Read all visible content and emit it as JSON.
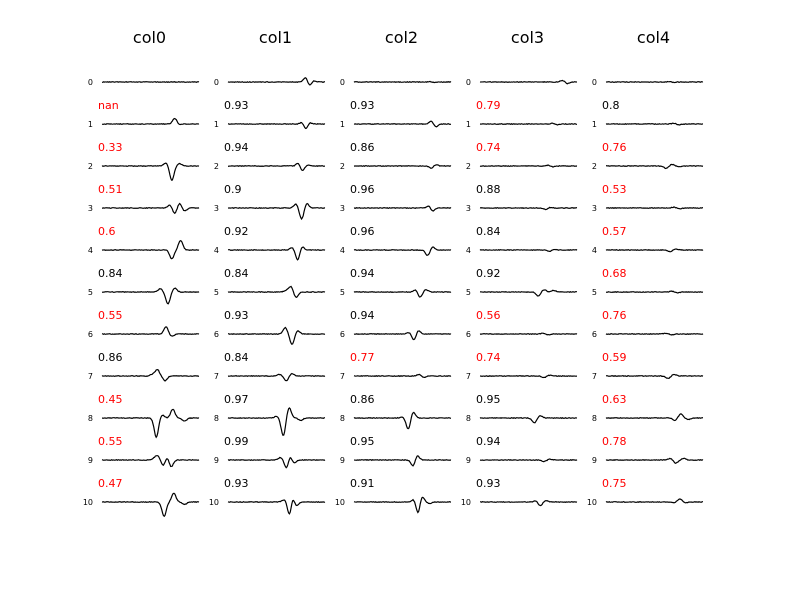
{
  "chart_data": {
    "type": "line",
    "columns": [
      "col0",
      "col1",
      "col2",
      "col3",
      "col4"
    ],
    "row_labels": [
      "0",
      "1",
      "2",
      "3",
      "4",
      "5",
      "6",
      "7",
      "8",
      "9",
      "10"
    ],
    "score_threshold": 0.8,
    "colors": {
      "low_score": "#ff0000",
      "normal_score": "#000000",
      "trace": "#000000"
    },
    "scores": [
      [
        "nan",
        "0.33",
        "0.51",
        "0.6",
        "0.84",
        "0.55",
        "0.86",
        "0.45",
        "0.55",
        "0.47"
      ],
      [
        "0.93",
        "0.94",
        "0.9",
        "0.92",
        "0.84",
        "0.93",
        "0.84",
        "0.97",
        "0.99",
        "0.93"
      ],
      [
        "0.93",
        "0.86",
        "0.96",
        "0.96",
        "0.94",
        "0.94",
        "0.77",
        "0.86",
        "0.95",
        "0.91"
      ],
      [
        "0.79",
        "0.74",
        "0.88",
        "0.84",
        "0.92",
        "0.56",
        "0.74",
        "0.95",
        "0.94",
        "0.93"
      ],
      [
        "0.8",
        "0.76",
        "0.53",
        "0.57",
        "0.68",
        "0.76",
        "0.59",
        "0.63",
        "0.78",
        "0.75"
      ]
    ],
    "waveforms": [
      [
        [],
        [
          [
            0.75,
            0.7
          ],
          [
            0.8,
            -0.1
          ]
        ],
        [
          [
            0.72,
            -1.8
          ],
          [
            0.66,
            0.4
          ],
          [
            0.8,
            0.3
          ]
        ],
        [
          [
            0.7,
            0.4
          ],
          [
            0.75,
            -0.7
          ],
          [
            0.8,
            0.6
          ],
          [
            0.85,
            -0.4
          ]
        ],
        [
          [
            0.72,
            -1.1
          ],
          [
            0.81,
            1.2
          ]
        ],
        [
          [
            0.68,
            -1.5
          ],
          [
            0.6,
            0.4
          ],
          [
            0.75,
            0.5
          ]
        ],
        [
          [
            0.66,
            0.9
          ],
          [
            0.72,
            -0.3
          ]
        ],
        [
          [
            0.57,
            0.8
          ],
          [
            0.65,
            -0.6
          ],
          [
            0.52,
            0.2
          ]
        ],
        [
          [
            0.56,
            -2.4
          ],
          [
            0.73,
            1.1
          ],
          [
            0.62,
            0.4
          ],
          [
            0.85,
            -0.4
          ]
        ],
        [
          [
            0.58,
            0.4
          ],
          [
            0.63,
            -0.7
          ],
          [
            0.68,
            0.5
          ],
          [
            0.71,
            -1.0
          ],
          [
            0.55,
            0.3
          ]
        ],
        [
          [
            0.64,
            -1.8
          ],
          [
            0.74,
            1.1
          ],
          [
            0.85,
            -0.3
          ]
        ]
      ],
      [
        [
          [
            0.8,
            0.6
          ],
          [
            0.84,
            -0.5
          ],
          [
            0.88,
            0.2
          ]
        ],
        [
          [
            0.8,
            -0.7
          ],
          [
            0.77,
            0.3
          ],
          [
            0.84,
            0.2
          ]
        ],
        [
          [
            0.76,
            -0.7
          ],
          [
            0.73,
            0.5
          ],
          [
            0.83,
            0.1
          ]
        ],
        [
          [
            0.76,
            -1.4
          ],
          [
            0.7,
            0.5
          ],
          [
            0.81,
            0.6
          ]
        ],
        [
          [
            0.72,
            -1.3
          ],
          [
            0.76,
            0.5
          ],
          [
            0.66,
            0.3
          ]
        ],
        [
          [
            0.65,
            0.7
          ],
          [
            0.7,
            -0.7
          ],
          [
            0.6,
            0.2
          ]
        ],
        [
          [
            0.59,
            0.8
          ],
          [
            0.66,
            -1.3
          ],
          [
            0.72,
            0.4
          ]
        ],
        [
          [
            0.6,
            -0.6
          ],
          [
            0.53,
            0.2
          ],
          [
            0.66,
            0.3
          ]
        ],
        [
          [
            0.57,
            -2.2
          ],
          [
            0.63,
            1.3
          ],
          [
            0.5,
            0.2
          ],
          [
            0.75,
            -0.3
          ]
        ],
        [
          [
            0.61,
            -1.5
          ],
          [
            0.63,
            1.0
          ],
          [
            0.54,
            0.3
          ],
          [
            0.68,
            -0.4
          ]
        ],
        [
          [
            0.64,
            -2.3
          ],
          [
            0.66,
            1.5
          ],
          [
            0.58,
            0.3
          ],
          [
            0.7,
            -0.6
          ]
        ]
      ],
      [
        [
          [
            0.8,
            0.1
          ],
          [
            0.82,
            -0.1
          ]
        ],
        [
          [
            0.8,
            0.4
          ],
          [
            0.84,
            -0.4
          ]
        ],
        [
          [
            0.8,
            -0.3
          ],
          [
            0.84,
            0.2
          ]
        ],
        [
          [
            0.77,
            0.3
          ],
          [
            0.81,
            -0.4
          ]
        ],
        [
          [
            0.76,
            -0.7
          ],
          [
            0.81,
            0.4
          ]
        ],
        [
          [
            0.68,
            -0.7
          ],
          [
            0.64,
            0.3
          ],
          [
            0.74,
            0.3
          ]
        ],
        [
          [
            0.62,
            -0.8
          ],
          [
            0.66,
            0.5
          ],
          [
            0.57,
            0.2
          ]
        ],
        [
          [
            0.67,
            0.2
          ],
          [
            0.72,
            -0.2
          ]
        ],
        [
          [
            0.56,
            -1.4
          ],
          [
            0.61,
            0.8
          ],
          [
            0.5,
            0.1
          ]
        ],
        [
          [
            0.61,
            -0.8
          ],
          [
            0.65,
            0.6
          ]
        ],
        [
          [
            0.66,
            -1.5
          ],
          [
            0.7,
            0.8
          ],
          [
            0.62,
            0.4
          ],
          [
            0.78,
            -0.2
          ]
        ]
      ],
      [
        [
          [
            0.85,
            0.2
          ],
          [
            0.9,
            -0.2
          ]
        ],
        [
          [
            0.75,
            0.1
          ],
          [
            0.8,
            -0.1
          ]
        ],
        [
          [
            0.7,
            0.1
          ],
          [
            0.75,
            -0.1
          ]
        ],
        [
          [
            0.68,
            -0.2
          ],
          [
            0.72,
            0.1
          ]
        ],
        [
          [
            0.72,
            -0.2
          ],
          [
            0.76,
            0.1
          ]
        ],
        [
          [
            0.6,
            -0.5
          ],
          [
            0.66,
            0.3
          ],
          [
            0.76,
            0.2
          ]
        ],
        [
          [
            0.65,
            0.1
          ],
          [
            0.7,
            -0.1
          ]
        ],
        [
          [
            0.66,
            -0.2
          ],
          [
            0.72,
            0.1
          ]
        ],
        [
          [
            0.56,
            -0.6
          ],
          [
            0.62,
            0.3
          ]
        ],
        [
          [
            0.66,
            -0.2
          ],
          [
            0.72,
            0.1
          ]
        ],
        [
          [
            0.62,
            -0.5
          ],
          [
            0.58,
            0.2
          ],
          [
            0.68,
            0.2
          ]
        ]
      ],
      [
        [
          [
            0.65,
            0.05
          ],
          [
            0.7,
            -0.05
          ]
        ],
        [
          [
            0.7,
            0.1
          ],
          [
            0.75,
            -0.1
          ]
        ],
        [
          [
            0.62,
            -0.3
          ],
          [
            0.68,
            0.2
          ],
          [
            0.76,
            -0.1
          ]
        ],
        [
          [
            0.7,
            0.1
          ],
          [
            0.76,
            -0.1
          ]
        ],
        [
          [
            0.66,
            -0.2
          ],
          [
            0.72,
            0.1
          ]
        ],
        [
          [
            0.68,
            0.1
          ],
          [
            0.74,
            -0.1
          ]
        ],
        [
          [
            0.62,
            0.1
          ],
          [
            0.68,
            -0.1
          ]
        ],
        [
          [
            0.64,
            -0.3
          ],
          [
            0.7,
            0.2
          ]
        ],
        [
          [
            0.77,
            0.5
          ],
          [
            0.71,
            -0.3
          ],
          [
            0.85,
            -0.2
          ]
        ],
        [
          [
            0.66,
            0.2
          ],
          [
            0.72,
            -0.4
          ],
          [
            0.8,
            0.2
          ]
        ],
        [
          [
            0.76,
            0.4
          ],
          [
            0.7,
            -0.1
          ],
          [
            0.82,
            -0.1
          ]
        ]
      ]
    ]
  }
}
